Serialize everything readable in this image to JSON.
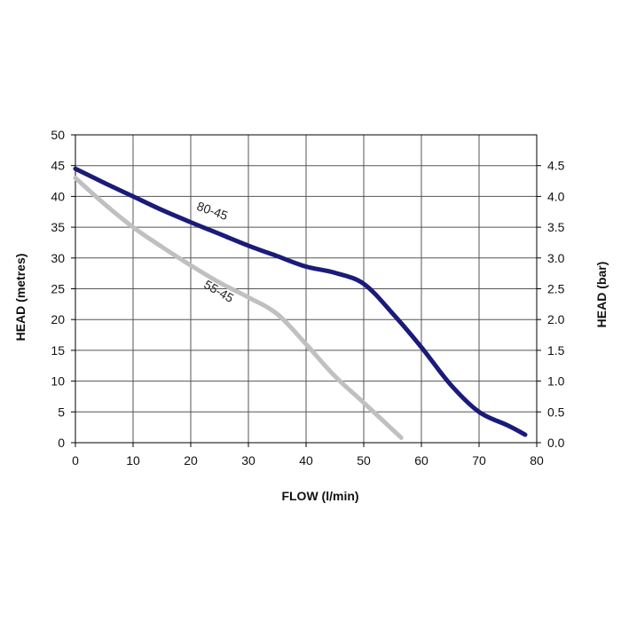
{
  "chart_data": {
    "type": "line",
    "title": "",
    "xlabel": "FLOW (l/min)",
    "ylabel": "HEAD (metres)",
    "y2label": "HEAD (bar)",
    "xlim": [
      0,
      80
    ],
    "ylim": [
      0,
      50
    ],
    "y2lim": [
      0,
      5
    ],
    "x_ticks": [
      0,
      10,
      20,
      30,
      40,
      50,
      60,
      70,
      80
    ],
    "y_ticks": [
      0,
      5,
      10,
      15,
      20,
      25,
      30,
      35,
      40,
      45,
      50
    ],
    "y2_ticks": [
      "0.0",
      "0.5",
      "1.0",
      "1.5",
      "2.0",
      "2.5",
      "3.0",
      "3.5",
      "4.0",
      "4.5"
    ],
    "grid": true,
    "legend": "none",
    "series": [
      {
        "name": "80-45",
        "color": "#1b1b7a",
        "x": [
          0,
          5,
          10,
          15,
          20,
          25,
          30,
          35,
          40,
          45,
          50,
          55,
          60,
          65,
          70,
          75,
          78
        ],
        "y": [
          44.5,
          42.2,
          40.0,
          37.8,
          35.8,
          33.9,
          32.0,
          30.3,
          28.6,
          27.6,
          25.8,
          21.0,
          15.5,
          9.5,
          5.0,
          2.8,
          1.3
        ]
      },
      {
        "name": "55-45",
        "color": "#c0c0c0",
        "x": [
          0,
          5,
          10,
          15,
          20,
          25,
          30,
          35,
          40,
          45,
          50,
          56.5
        ],
        "y": [
          43.0,
          38.8,
          35.0,
          31.8,
          28.8,
          26.0,
          23.6,
          20.9,
          16.0,
          10.8,
          6.5,
          0.8
        ]
      }
    ],
    "annotations": [
      {
        "text": "80-45",
        "x": 23.5,
        "y": 37.0,
        "angle": 20
      },
      {
        "text": "55-45",
        "x": 24.5,
        "y": 24.0,
        "angle": 30
      }
    ]
  }
}
